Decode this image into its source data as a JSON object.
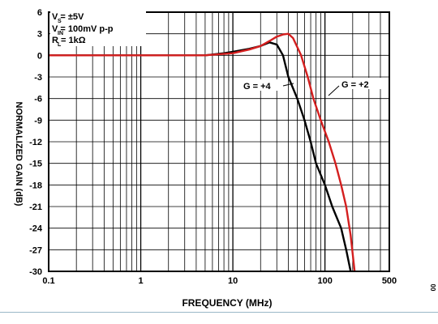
{
  "chart_data": {
    "type": "line",
    "title": "",
    "xlabel": "FREQUENCY (MHz)",
    "ylabel": "NORMALIZED GAIN (dB)",
    "x_scale": "log",
    "xlim": [
      0.1,
      500
    ],
    "ylim": [
      -30,
      6
    ],
    "x_ticks": [
      {
        "value": 0.1,
        "label": "0.1"
      },
      {
        "value": 1,
        "label": "1"
      },
      {
        "value": 10,
        "label": "10"
      },
      {
        "value": 100,
        "label": "100"
      },
      {
        "value": 500,
        "label": "500"
      }
    ],
    "y_ticks": [
      6,
      3,
      0,
      -3,
      -6,
      -9,
      -12,
      -15,
      -18,
      -21,
      -24,
      -27,
      -30
    ],
    "grid": true,
    "conditions": {
      "vs": "V  = ±5V",
      "vs_sub": "S",
      "vin": "V   = 100mV p-p",
      "vin_sub": "IN",
      "rl": "R  = 1kΩ",
      "rl_sub": "L"
    },
    "series": [
      {
        "name": "G = +4",
        "color": "#000000",
        "x": [
          0.1,
          1,
          5,
          8,
          10,
          15,
          20,
          25,
          30,
          35,
          40,
          50,
          60,
          70,
          80,
          100,
          120,
          150,
          170,
          190
        ],
        "y": [
          0,
          0,
          0,
          0.3,
          0.5,
          0.9,
          1.3,
          1.8,
          1.5,
          0,
          -3,
          -6,
          -9,
          -12,
          -15,
          -18,
          -21,
          -24,
          -27,
          -30
        ]
      },
      {
        "name": "G = +2",
        "color": "#d41f1f",
        "x": [
          0.1,
          1,
          5,
          10,
          15,
          20,
          25,
          30,
          35,
          40,
          45,
          55,
          65,
          75,
          90,
          110,
          130,
          150,
          170,
          190,
          210
        ],
        "y": [
          0,
          0,
          0,
          0.3,
          0.8,
          1.3,
          2.0,
          2.6,
          2.9,
          3.0,
          2.4,
          0,
          -3,
          -6,
          -9,
          -12,
          -15,
          -18,
          -21,
          -25,
          -30
        ]
      }
    ],
    "annotations": [
      {
        "text": "G = +4",
        "target": "G = +4"
      },
      {
        "text": "G = +2",
        "target": "G = +2"
      }
    ],
    "figure_id": "00"
  }
}
